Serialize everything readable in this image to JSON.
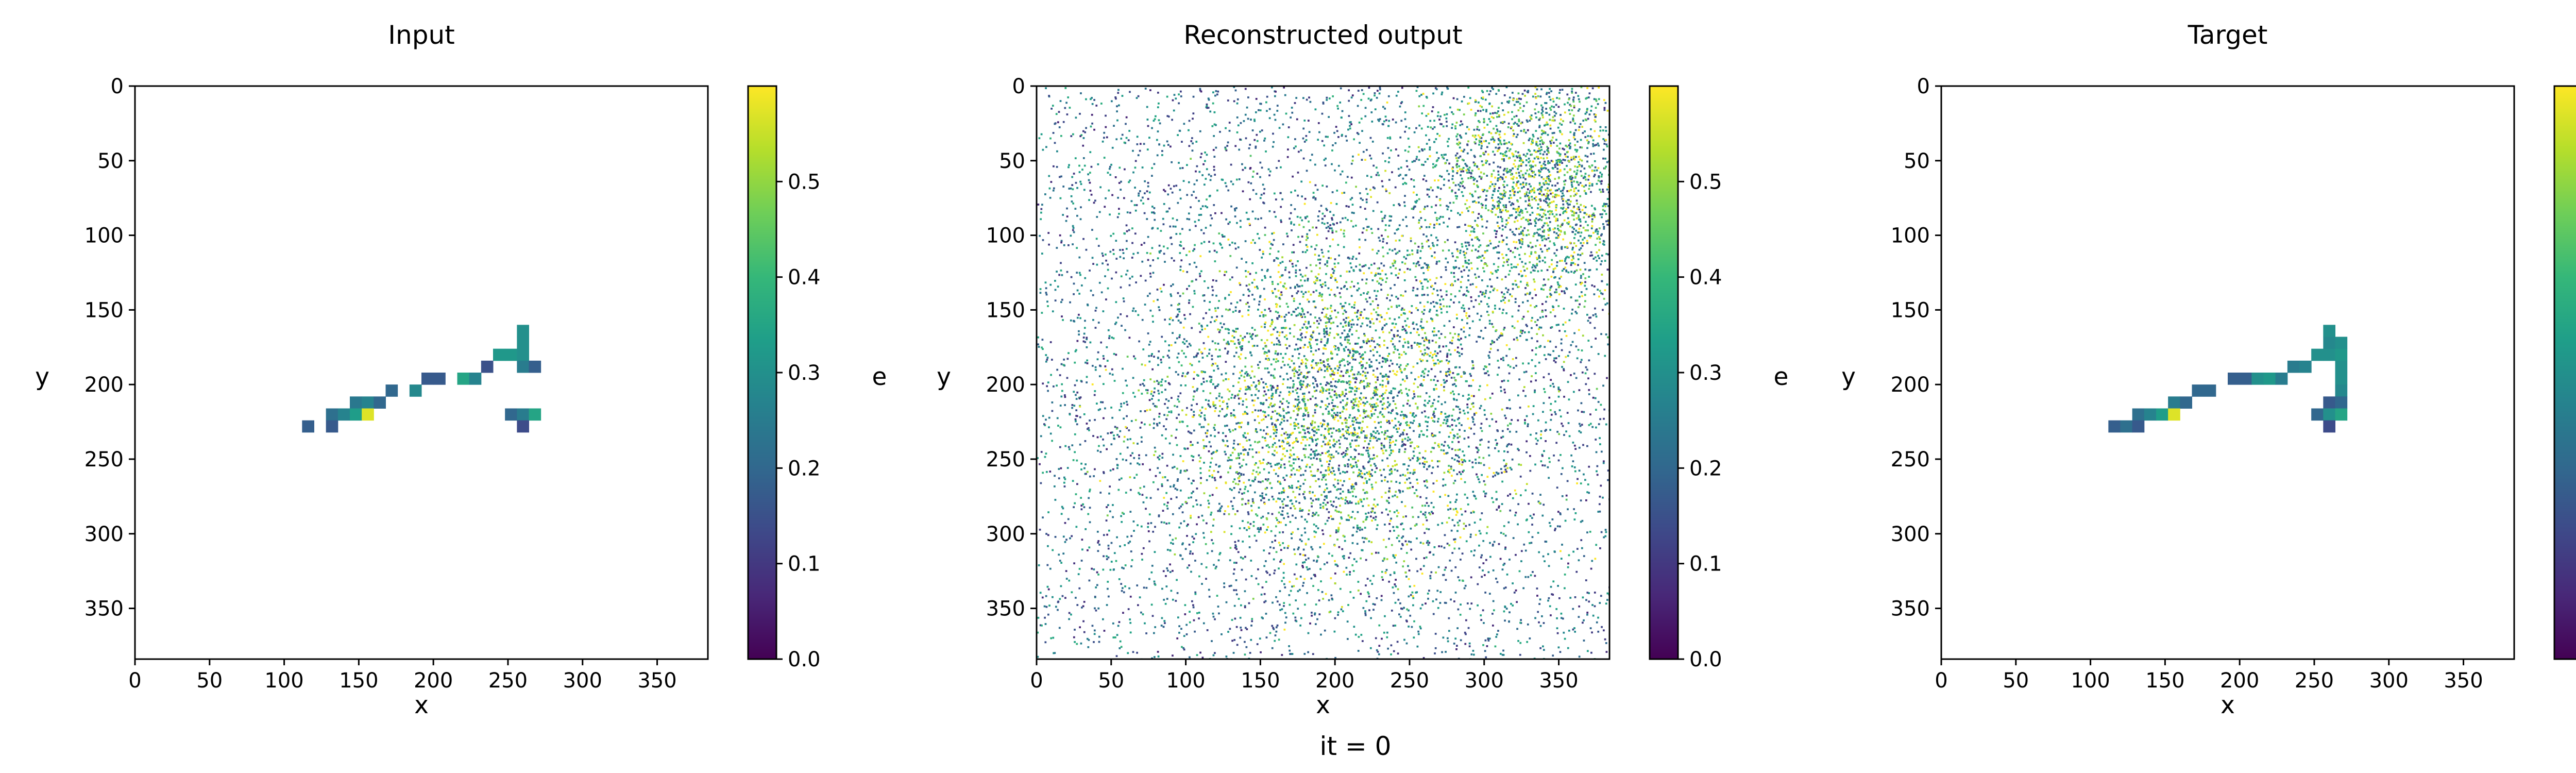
{
  "figure": {
    "footer_text": "it = 0"
  },
  "colormap": {
    "name": "viridis",
    "stops": [
      "#440154",
      "#482878",
      "#3e4989",
      "#31688e",
      "#26828e",
      "#1f9e89",
      "#35b779",
      "#6ece58",
      "#b5de2b",
      "#fde725"
    ]
  },
  "chart_data": [
    {
      "type": "heatmap",
      "title": "Input",
      "xlabel": "x",
      "ylabel": "y",
      "colorbar_label": "e",
      "xlim": [
        0,
        384
      ],
      "ylim": [
        384,
        0
      ],
      "xticks": [
        0,
        50,
        100,
        150,
        200,
        250,
        300,
        350
      ],
      "yticks": [
        0,
        50,
        100,
        150,
        200,
        250,
        300,
        350
      ],
      "clim": [
        0,
        0.6
      ],
      "colorbar_ticks": [
        "0.0",
        "0.1",
        "0.2",
        "0.3",
        "0.4",
        "0.5"
      ],
      "pixel_size": 8,
      "pixels": [
        [
          256,
          160,
          0.3
        ],
        [
          256,
          168,
          0.3
        ],
        [
          240,
          176,
          0.32
        ],
        [
          248,
          176,
          0.32
        ],
        [
          256,
          176,
          0.3
        ],
        [
          232,
          184,
          0.15
        ],
        [
          256,
          184,
          0.25
        ],
        [
          264,
          184,
          0.18
        ],
        [
          192,
          192,
          0.17
        ],
        [
          200,
          192,
          0.17
        ],
        [
          216,
          192,
          0.35
        ],
        [
          224,
          192,
          0.27
        ],
        [
          168,
          200,
          0.2
        ],
        [
          184,
          200,
          0.28
        ],
        [
          144,
          208,
          0.24
        ],
        [
          152,
          208,
          0.27
        ],
        [
          160,
          208,
          0.2
        ],
        [
          128,
          216,
          0.22
        ],
        [
          136,
          216,
          0.27
        ],
        [
          144,
          216,
          0.33
        ],
        [
          152,
          216,
          0.57
        ],
        [
          248,
          216,
          0.2
        ],
        [
          256,
          216,
          0.25
        ],
        [
          264,
          216,
          0.35
        ],
        [
          112,
          224,
          0.18
        ],
        [
          128,
          224,
          0.17
        ],
        [
          256,
          224,
          0.14
        ]
      ]
    },
    {
      "type": "heatmap",
      "title": "Reconstructed output",
      "xlabel": "x",
      "ylabel": "y",
      "colorbar_label": "e",
      "xlim": [
        0,
        384
      ],
      "ylim": [
        384,
        0
      ],
      "xticks": [
        0,
        50,
        100,
        150,
        200,
        250,
        300,
        350
      ],
      "yticks": [
        0,
        50,
        100,
        150,
        200,
        250,
        300,
        350
      ],
      "clim": [
        0,
        0.6
      ],
      "colorbar_ticks": [
        "0.0",
        "0.1",
        "0.2",
        "0.3",
        "0.4",
        "0.5"
      ],
      "pixel_size": 1,
      "noise": {
        "background_points": 4500,
        "clusters": [
          {
            "cx": 200,
            "cy": 210,
            "sx": 55,
            "sy": 55,
            "points": 3000
          },
          {
            "cx": 335,
            "cy": 65,
            "sx": 40,
            "sy": 45,
            "points": 2000
          }
        ]
      }
    },
    {
      "type": "heatmap",
      "title": "Target",
      "xlabel": "x",
      "ylabel": "y",
      "colorbar_label": "e",
      "xlim": [
        0,
        384
      ],
      "ylim": [
        384,
        0
      ],
      "xticks": [
        0,
        50,
        100,
        150,
        200,
        250,
        300,
        350
      ],
      "yticks": [
        0,
        50,
        100,
        150,
        200,
        250,
        300,
        350
      ],
      "clim": [
        0,
        0.6
      ],
      "colorbar_ticks": [
        "0.0",
        "0.1",
        "0.2",
        "0.3",
        "0.4",
        "0.5"
      ],
      "pixel_size": 8,
      "pixels": [
        [
          256,
          160,
          0.3
        ],
        [
          256,
          168,
          0.28
        ],
        [
          264,
          168,
          0.3
        ],
        [
          248,
          176,
          0.3
        ],
        [
          256,
          176,
          0.3
        ],
        [
          264,
          176,
          0.32
        ],
        [
          232,
          184,
          0.25
        ],
        [
          240,
          184,
          0.27
        ],
        [
          264,
          184,
          0.3
        ],
        [
          192,
          192,
          0.18
        ],
        [
          200,
          192,
          0.18
        ],
        [
          208,
          192,
          0.3
        ],
        [
          216,
          192,
          0.32
        ],
        [
          224,
          192,
          0.25
        ],
        [
          264,
          192,
          0.3
        ],
        [
          168,
          200,
          0.2
        ],
        [
          176,
          200,
          0.2
        ],
        [
          264,
          200,
          0.28
        ],
        [
          152,
          208,
          0.25
        ],
        [
          160,
          208,
          0.2
        ],
        [
          256,
          208,
          0.17
        ],
        [
          264,
          208,
          0.2
        ],
        [
          128,
          216,
          0.22
        ],
        [
          136,
          216,
          0.27
        ],
        [
          144,
          216,
          0.33
        ],
        [
          152,
          216,
          0.57
        ],
        [
          248,
          216,
          0.2
        ],
        [
          256,
          216,
          0.3
        ],
        [
          264,
          216,
          0.35
        ],
        [
          112,
          224,
          0.18
        ],
        [
          120,
          224,
          0.22
        ],
        [
          128,
          224,
          0.17
        ],
        [
          256,
          224,
          0.14
        ]
      ]
    }
  ]
}
